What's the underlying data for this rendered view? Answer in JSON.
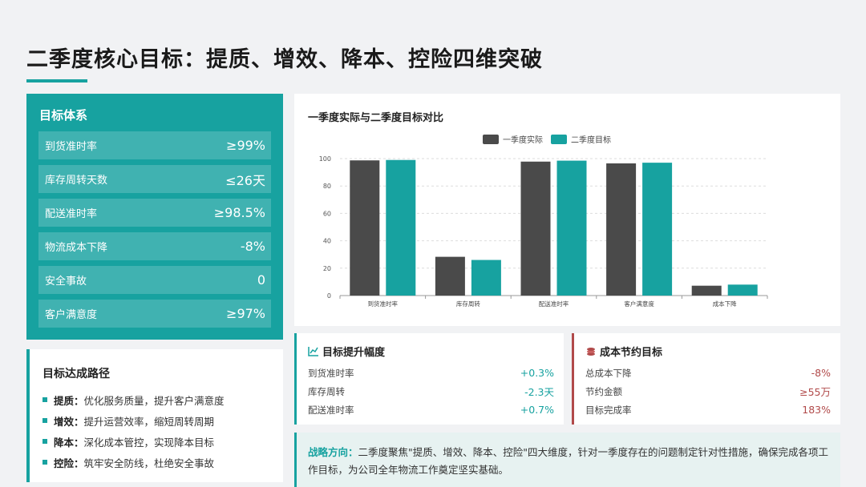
{
  "page": {
    "title": "二季度核心目标：提质、增效、降本、控险四维突破"
  },
  "targets": {
    "title": "目标体系",
    "items": [
      {
        "label": "到货准时率",
        "value": "≥99%"
      },
      {
        "label": "库存周转天数",
        "value": "≤26天"
      },
      {
        "label": "配送准时率",
        "value": "≥98.5%"
      },
      {
        "label": "物流成本下降",
        "value": "-8%"
      },
      {
        "label": "安全事故",
        "value": "0"
      },
      {
        "label": "客户满意度",
        "value": "≥97%"
      }
    ]
  },
  "path": {
    "title": "目标达成路径",
    "items": [
      {
        "key": "提质：",
        "text": "优化服务质量，提升客户满意度"
      },
      {
        "key": "增效：",
        "text": "提升运营效率，缩短周转周期"
      },
      {
        "key": "降本：",
        "text": "深化成本管控，实现降本目标"
      },
      {
        "key": "控险：",
        "text": "筑牢安全防线，杜绝安全事故"
      }
    ]
  },
  "chart_data": {
    "type": "bar",
    "title": "一季度实际与二季度目标对比",
    "categories": [
      "到货准时率",
      "库存周转",
      "配送准时率",
      "客户满意度",
      "成本下降"
    ],
    "series": [
      {
        "name": "一季度实际",
        "color": "#4a4a4a",
        "values": [
          98.7,
          28.3,
          97.8,
          96.5,
          7.2
        ]
      },
      {
        "name": "二季度目标",
        "color": "#17a2a0",
        "values": [
          99,
          26,
          98.5,
          97,
          8
        ]
      }
    ],
    "ylim": [
      0,
      100
    ],
    "yticks": [
      0,
      20,
      40,
      60,
      80,
      100
    ],
    "xlabel": "",
    "ylabel": "",
    "grid": true,
    "legend": "top-center"
  },
  "lift": {
    "title": "目标提升幅度",
    "icon": "line-chart-icon",
    "items": [
      {
        "label": "到货准时率",
        "value": "+0.3%"
      },
      {
        "label": "库存周转",
        "value": "-2.3天"
      },
      {
        "label": "配送准时率",
        "value": "+0.7%"
      }
    ]
  },
  "cost": {
    "title": "成本节约目标",
    "icon": "coins-icon",
    "items": [
      {
        "label": "总成本下降",
        "value": "-8%"
      },
      {
        "label": "节约金额",
        "value": "≥55万"
      },
      {
        "label": "目标完成率",
        "value": "183%"
      }
    ]
  },
  "strategy": {
    "lead": "战略方向：",
    "text": "二季度聚焦\"提质、增效、降本、控险\"四大维度，针对一季度存在的问题制定针对性措施，确保完成各项工作目标，为公司全年物流工作奠定坚实基础。"
  },
  "colors": {
    "accent": "#17a2a0",
    "dark_bar": "#4a4a4a",
    "cost_red": "#b14a4a"
  }
}
